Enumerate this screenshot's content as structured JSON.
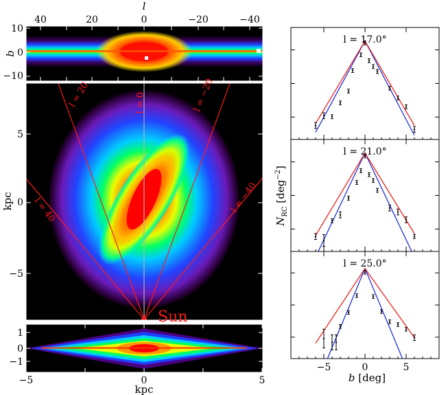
{
  "chart_data": [
    {
      "type": "heatmap",
      "panel": "sky-projection",
      "xlabel": "l",
      "ylabel": "b",
      "x_ticks": [
        "40",
        "20",
        "0",
        "−20",
        "−40"
      ],
      "y_ticks": [
        "10",
        "0",
        "−10"
      ],
      "xlim": [
        45,
        -45
      ],
      "ylim": [
        -12,
        10
      ]
    },
    {
      "type": "heatmap",
      "panel": "face-on",
      "xlabel": "",
      "ylabel": "kpc",
      "y_ticks": [
        "5",
        "0",
        "−5"
      ],
      "ylim": [
        -8.5,
        8.5
      ],
      "sightlines": [
        {
          "label": "l = 40",
          "l": 40
        },
        {
          "label": "l = 20",
          "l": 20
        },
        {
          "label": "l = 0",
          "l": 0
        },
        {
          "label": "l = −20",
          "l": -20
        },
        {
          "label": "l = −40",
          "l": -40
        }
      ],
      "sun_label": "Sun"
    },
    {
      "type": "heatmap",
      "panel": "side-on",
      "xlabel": "kpc",
      "x_ticks": [
        "−5",
        "0",
        "5"
      ],
      "y_ticks": [
        "1",
        "0",
        "−1"
      ],
      "xlim": [
        -5,
        5
      ],
      "ylim": [
        -1.4,
        1.4
      ]
    },
    {
      "type": "line",
      "panel": "profiles",
      "xlabel": "b [deg]",
      "ylabel": "N_RC [deg^−2]",
      "xlim": [
        -9,
        9
      ],
      "x_ticks": [
        "−5",
        "0",
        "5"
      ],
      "subplots": [
        {
          "title": "l = 17.0°",
          "points": [
            {
              "b": -6,
              "y": 0.1,
              "err": 0.03
            },
            {
              "b": -5,
              "y": 0.2,
              "err": 0.03
            },
            {
              "b": -4,
              "y": 0.19,
              "err": 0.02
            },
            {
              "b": -3,
              "y": 0.33,
              "err": 0.02
            },
            {
              "b": -2,
              "y": 0.45,
              "err": 0.02
            },
            {
              "b": -1.5,
              "y": 0.66,
              "err": 0.02
            },
            {
              "b": -0.5,
              "y": 0.82,
              "err": 0.02
            },
            {
              "b": 0,
              "y": 0.94,
              "err": 0.02
            },
            {
              "b": 0.5,
              "y": 0.76,
              "err": 0.02
            },
            {
              "b": 1,
              "y": 0.7,
              "err": 0.02
            },
            {
              "b": 1.5,
              "y": 0.65,
              "err": 0.02
            },
            {
              "b": 3,
              "y": 0.48,
              "err": 0.02
            },
            {
              "b": 4,
              "y": 0.38,
              "err": 0.02
            },
            {
              "b": 5,
              "y": 0.29,
              "err": 0.02
            },
            {
              "b": 6,
              "y": 0.06,
              "err": 0.03
            }
          ],
          "red_line": {
            "b": [
              -6,
              0,
              6
            ],
            "y": [
              0.12,
              0.96,
              0.1
            ]
          },
          "blue_line": {
            "b": [
              -6,
              0,
              6
            ],
            "y": [
              0.03,
              0.96,
              0.0
            ]
          }
        },
        {
          "title": "l = 21.0°",
          "points": [
            {
              "b": -6,
              "y": 0.11,
              "err": 0.03
            },
            {
              "b": -5,
              "y": 0.07,
              "err": 0.06
            },
            {
              "b": -4,
              "y": 0.27,
              "err": 0.02
            },
            {
              "b": -3,
              "y": 0.33,
              "err": 0.03
            },
            {
              "b": -2,
              "y": 0.5,
              "err": 0.02
            },
            {
              "b": -1,
              "y": 0.66,
              "err": 0.02
            },
            {
              "b": -0.5,
              "y": 0.78,
              "err": 0.02
            },
            {
              "b": 0,
              "y": 0.93,
              "err": 0.02
            },
            {
              "b": 0.5,
              "y": 0.74,
              "err": 0.02
            },
            {
              "b": 1,
              "y": 0.68,
              "err": 0.02
            },
            {
              "b": 1.5,
              "y": 0.58,
              "err": 0.02
            },
            {
              "b": 3,
              "y": 0.4,
              "err": 0.03
            },
            {
              "b": 4,
              "y": 0.36,
              "err": 0.03
            },
            {
              "b": 5,
              "y": 0.28,
              "err": 0.03
            },
            {
              "b": 6,
              "y": 0.11,
              "err": 0.02
            }
          ],
          "red_line": {
            "b": [
              -6,
              0,
              6
            ],
            "y": [
              0.12,
              0.96,
              0.14
            ]
          },
          "blue_line": {
            "b": [
              -6,
              0,
              6
            ],
            "y": [
              -0.1,
              0.96,
              -0.1
            ]
          }
        },
        {
          "title": "l = 25.0°",
          "points": [
            {
              "b": -5,
              "y": 0.17,
              "err": 0.1
            },
            {
              "b": -4,
              "y": 0.13,
              "err": 0.08
            },
            {
              "b": -3.5,
              "y": 0.13,
              "err": 0.08
            },
            {
              "b": -3,
              "y": 0.3,
              "err": 0.02
            },
            {
              "b": -2,
              "y": 0.45,
              "err": 0.02
            },
            {
              "b": -1,
              "y": 0.63,
              "err": 0.02
            },
            {
              "b": 0,
              "y": 0.88,
              "err": 0.02
            },
            {
              "b": 1,
              "y": 0.62,
              "err": 0.02
            },
            {
              "b": 2,
              "y": 0.46,
              "err": 0.02
            },
            {
              "b": 3,
              "y": 0.35,
              "err": 0.02
            },
            {
              "b": 4,
              "y": 0.32,
              "err": 0.02
            },
            {
              "b": 5,
              "y": 0.27,
              "err": 0.02
            },
            {
              "b": 6,
              "y": 0.18,
              "err": 0.03
            }
          ],
          "red_line": {
            "b": [
              -6,
              0,
              6
            ],
            "y": [
              0.12,
              0.92,
              0.18
            ]
          },
          "blue_line": {
            "b": [
              -6,
              0,
              6
            ],
            "y": [
              -0.35,
              0.92,
              -0.35
            ]
          }
        }
      ]
    }
  ],
  "colors": {
    "red_line": "#e8201a",
    "blue_line": "#1f2fd6",
    "sightline": "#ff1a1a",
    "heatmap_background": "#000000"
  }
}
